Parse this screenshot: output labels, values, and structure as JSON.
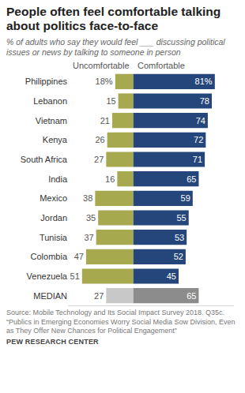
{
  "chart_data": {
    "type": "bar",
    "orientation": "horizontal",
    "title": "People often feel comfortable talking about politics face-to-face",
    "subtitle": "% of adults who say they would feel ___ discussing political issues or news by talking to someone in person",
    "categories": [
      "Philippines",
      "Lebanon",
      "Vietnam",
      "Kenya",
      "South Africa",
      "India",
      "Mexico",
      "Jordan",
      "Tunisia",
      "Colombia",
      "Venezuela",
      "MEDIAN"
    ],
    "series": [
      {
        "name": "Uncomfortable",
        "color": "#a6a94e",
        "colors": [
          "#a6a94e",
          "#a6a94e",
          "#a6a94e",
          "#a6a94e",
          "#a6a94e",
          "#a6a94e",
          "#a6a94e",
          "#a6a94e",
          "#a6a94e",
          "#a6a94e",
          "#a6a94e",
          "#c8c8c8"
        ],
        "values": [
          18,
          15,
          21,
          26,
          27,
          16,
          38,
          35,
          37,
          47,
          51,
          27
        ],
        "value_labels": [
          "18%",
          "15",
          "21",
          "26",
          "27",
          "16",
          "38",
          "35",
          "37",
          "47",
          "51",
          "27"
        ]
      },
      {
        "name": "Comfortable",
        "color": "#24467a",
        "colors": [
          "#24467a",
          "#24467a",
          "#24467a",
          "#24467a",
          "#24467a",
          "#24467a",
          "#24467a",
          "#24467a",
          "#24467a",
          "#24467a",
          "#24467a",
          "#8c8c8c"
        ],
        "values": [
          81,
          78,
          74,
          72,
          71,
          65,
          59,
          55,
          53,
          52,
          45,
          65
        ],
        "value_labels": [
          "81%",
          "78",
          "74",
          "72",
          "71",
          "65",
          "59",
          "55",
          "53",
          "52",
          "45",
          "65"
        ]
      }
    ],
    "xlim": [
      -65,
      100
    ],
    "data_labels": true,
    "tick_labels": "y",
    "grid": false,
    "source": "Source: Mobile Technology and Its Social Impact Survey 2018. Q35c.",
    "note": "“Publics in Emerging Economies Worry Social Media Sow Division, Even as They Offer New Chances for Political Engagement”",
    "credit": "PEW RESEARCH CENTER"
  }
}
